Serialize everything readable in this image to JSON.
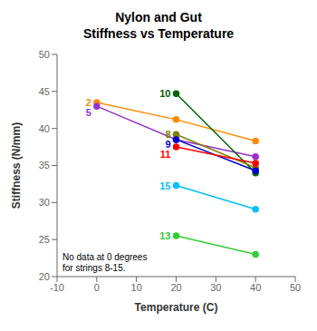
{
  "chart_data": {
    "type": "line",
    "title": "Nylon and Gut\nStiffness vs Temperature",
    "xlabel": "Temperature (C)",
    "ylabel": "Stiffness (N/mm)",
    "xlim": [
      -10,
      50
    ],
    "ylim": [
      20,
      50
    ],
    "xticks": [
      -10,
      0,
      10,
      20,
      30,
      40,
      50
    ],
    "yticks": [
      20,
      25,
      30,
      35,
      40,
      45,
      50
    ],
    "grid": false,
    "legend": "none",
    "marker": "circle",
    "annotation": "No data at 0 degrees\nfor strings 8-15.",
    "series": [
      {
        "name": "2",
        "color": "#ff8c00",
        "x": [
          0,
          20,
          40
        ],
        "values": [
          43.5,
          41.2,
          38.3
        ]
      },
      {
        "name": "5",
        "color": "#9932cc",
        "x": [
          0,
          20,
          40
        ],
        "values": [
          43.0,
          38.5,
          36.2
        ]
      },
      {
        "name": "10",
        "color": "#006400",
        "x": [
          20,
          40
        ],
        "values": [
          44.7,
          34.0
        ]
      },
      {
        "name": "8",
        "color": "#808000",
        "x": [
          20,
          40
        ],
        "values": [
          39.2,
          34.7
        ]
      },
      {
        "name": "9",
        "color": "#0000cd",
        "x": [
          20,
          40
        ],
        "values": [
          38.5,
          34.3
        ]
      },
      {
        "name": "11",
        "color": "#ff0000",
        "x": [
          20,
          40
        ],
        "values": [
          37.5,
          35.3
        ]
      },
      {
        "name": "15",
        "color": "#00bfff",
        "x": [
          20,
          40
        ],
        "values": [
          32.3,
          29.1
        ]
      },
      {
        "name": "13",
        "color": "#32cd32",
        "x": [
          20,
          40
        ],
        "values": [
          25.5,
          23.0
        ]
      }
    ]
  }
}
